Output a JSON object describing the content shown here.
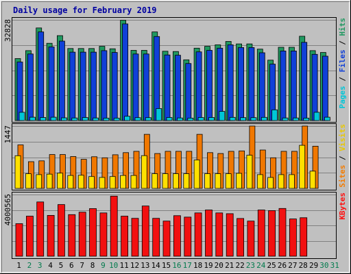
{
  "chart_data": {
    "type": "bar",
    "title": "Daily usage for February 2019",
    "categories": [
      "1",
      "2",
      "3",
      "4",
      "5",
      "6",
      "7",
      "8",
      "9",
      "10",
      "11",
      "12",
      "13",
      "14",
      "15",
      "16",
      "17",
      "18",
      "19",
      "20",
      "21",
      "22",
      "23",
      "24",
      "25",
      "26",
      "27",
      "28",
      "29",
      "30",
      "31"
    ],
    "weekend_days": [
      2,
      3,
      9,
      10,
      16,
      17,
      23,
      24,
      30,
      31
    ],
    "day_label_colors": {
      "weekday": "#000000",
      "weekend": "#007a4c"
    },
    "panels": [
      {
        "id": "top",
        "max_label": "32828",
        "ylim": [
          0,
          32828
        ],
        "side_label": [
          {
            "text": "Pages",
            "color": "#00c6d8"
          },
          {
            "text": " / ",
            "color": "#000000"
          },
          {
            "text": "Files",
            "color": "#1040d8"
          },
          {
            "text": " / ",
            "color": "#000000"
          },
          {
            "text": "Hits",
            "color": "#1f9860"
          }
        ],
        "series": [
          {
            "name": "Hits",
            "color": "#1f9860",
            "values": [
              20200,
              22800,
              30200,
              25200,
              27700,
              23500,
              23500,
              23500,
              24200,
              23400,
              32700,
              22900,
              22900,
              28900,
              22600,
              22500,
              19800,
              23600,
              24200,
              24700,
              25800,
              25000,
              25000,
              23300,
              19700,
              23900,
              23900,
              27500,
              22800,
              22200,
              null
            ]
          },
          {
            "name": "Files",
            "color": "#1040d8",
            "values": [
              19100,
              21700,
              28900,
              24000,
              25900,
              22300,
              22300,
              22300,
              22800,
              22200,
              31500,
              21700,
              21700,
              27400,
              21400,
              21300,
              18600,
              22400,
              22900,
              23600,
              24700,
              23800,
              23800,
              22100,
              18400,
              22700,
              22700,
              25500,
              21600,
              21000,
              null
            ]
          },
          {
            "name": "Pages",
            "color": "#00c6d8",
            "values": [
              2700,
              1100,
              1000,
              1100,
              900,
              850,
              1000,
              850,
              800,
              800,
              1400,
              950,
              950,
              3900,
              1000,
              850,
              800,
              1000,
              1000,
              3000,
              1050,
              950,
              950,
              1050,
              3500,
              850,
              850,
              800,
              2700,
              1100,
              null
            ]
          }
        ]
      },
      {
        "id": "middle",
        "max_label": "1447",
        "ylim": [
          0,
          1447
        ],
        "side_label": [
          {
            "text": "Sites",
            "color": "#f47c00"
          },
          {
            "text": " / ",
            "color": "#000000"
          },
          {
            "text": "Visits",
            "color": "#e8c800"
          }
        ],
        "series": [
          {
            "name": "Sites",
            "color": "#f07800",
            "values": [
              1010,
              620,
              640,
              785,
              785,
              740,
              675,
              735,
              710,
              780,
              830,
              860,
              1255,
              810,
              860,
              860,
              860,
              1255,
              830,
              810,
              860,
              870,
              1447,
              890,
              710,
              860,
              860,
              1447,
              980,
              null,
              null
            ]
          },
          {
            "name": "Visits",
            "color": "#ffe000",
            "values": [
              758,
              340,
              320,
              330,
              355,
              300,
              305,
              275,
              255,
              275,
              300,
              300,
              760,
              340,
              340,
              340,
              340,
              660,
              340,
              340,
              340,
              350,
              770,
              320,
              255,
              320,
              320,
              1000,
              400,
              null,
              null
            ]
          }
        ]
      },
      {
        "id": "bottom",
        "max_label": "4000565",
        "ylim": [
          0,
          4000565
        ],
        "side_label": [
          {
            "text": "KBytes",
            "color": "#ff1010"
          }
        ],
        "series": [
          {
            "name": "KBytes",
            "color": "#f21010",
            "values": [
              2110000,
              2600000,
              3520000,
              2650000,
              3350000,
              2700000,
              2860000,
              3090000,
              2810000,
              3900000,
              2600000,
              2460000,
              3260000,
              2460000,
              2280000,
              2630000,
              2540000,
              2810000,
              3000000,
              2810000,
              2760000,
              2450000,
              2280000,
              3000000,
              2960000,
              3100000,
              2420000,
              2500000,
              null,
              null,
              null
            ]
          }
        ]
      }
    ]
  }
}
